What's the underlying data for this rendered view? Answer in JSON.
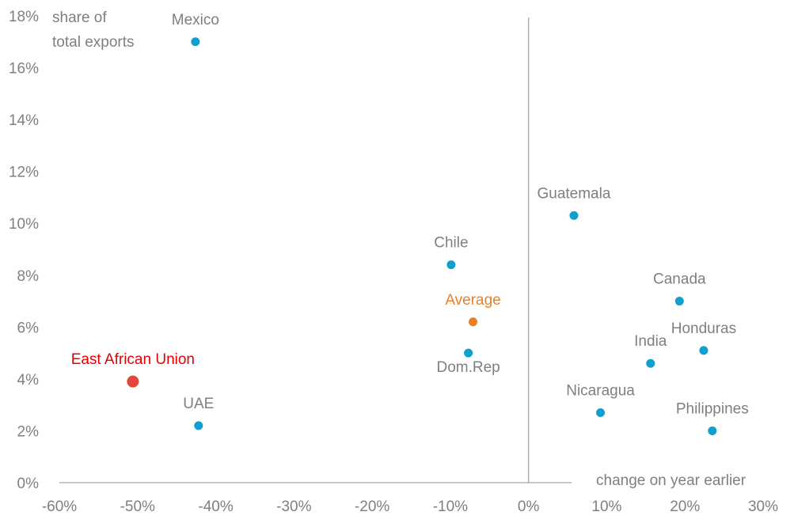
{
  "chart_data": {
    "type": "scatter",
    "title": "",
    "xlabel": "change on year earlier",
    "ylabel_lines": [
      "share of",
      "total exports"
    ],
    "xlim": [
      -60,
      30
    ],
    "ylim": [
      0,
      18
    ],
    "x_ticks": [
      "-60%",
      "-50%",
      "-40%",
      "-30%",
      "-20%",
      "-10%",
      "0%",
      "10%",
      "20%",
      "30%"
    ],
    "x_tick_values": [
      -60,
      -50,
      -40,
      -30,
      -20,
      -10,
      0,
      10,
      20,
      30
    ],
    "y_ticks": [
      "0%",
      "2%",
      "4%",
      "6%",
      "8%",
      "10%",
      "12%",
      "14%",
      "16%",
      "18%"
    ],
    "y_tick_values": [
      0,
      2,
      4,
      6,
      8,
      10,
      12,
      14,
      16,
      18
    ],
    "grid": false,
    "colors": {
      "default": "#0f9fd0",
      "average": "#e8802a",
      "highlight": "#e5453a",
      "highlight_label": "#e60000",
      "label": "#7f7f7f",
      "axis": "#a6a6a6"
    },
    "points": [
      {
        "label": "Mexico",
        "x": -42.6,
        "y": 17.0,
        "kind": "default",
        "label_pos": "above"
      },
      {
        "label": "East African Union",
        "x": -50.6,
        "y": 3.9,
        "kind": "highlight",
        "label_pos": "above"
      },
      {
        "label": "UAE",
        "x": -42.2,
        "y": 2.2,
        "kind": "default",
        "label_pos": "above"
      },
      {
        "label": "Chile",
        "x": -9.9,
        "y": 8.4,
        "kind": "default",
        "label_pos": "above"
      },
      {
        "label": "Average",
        "x": -7.1,
        "y": 6.2,
        "kind": "average",
        "label_pos": "above"
      },
      {
        "label": "Dom.Rep",
        "x": -7.7,
        "y": 5.0,
        "kind": "default",
        "label_pos": "below"
      },
      {
        "label": "Guatemala",
        "x": 5.8,
        "y": 10.3,
        "kind": "default",
        "label_pos": "above"
      },
      {
        "label": "Canada",
        "x": 19.3,
        "y": 7.0,
        "kind": "default",
        "label_pos": "above"
      },
      {
        "label": "Honduras",
        "x": 22.4,
        "y": 5.1,
        "kind": "default",
        "label_pos": "above"
      },
      {
        "label": "India",
        "x": 15.6,
        "y": 4.6,
        "kind": "default",
        "label_pos": "above"
      },
      {
        "label": "Nicaragua",
        "x": 9.2,
        "y": 2.7,
        "kind": "default",
        "label_pos": "above"
      },
      {
        "label": "Philippines",
        "x": 23.5,
        "y": 2.0,
        "kind": "default",
        "label_pos": "above"
      }
    ]
  }
}
